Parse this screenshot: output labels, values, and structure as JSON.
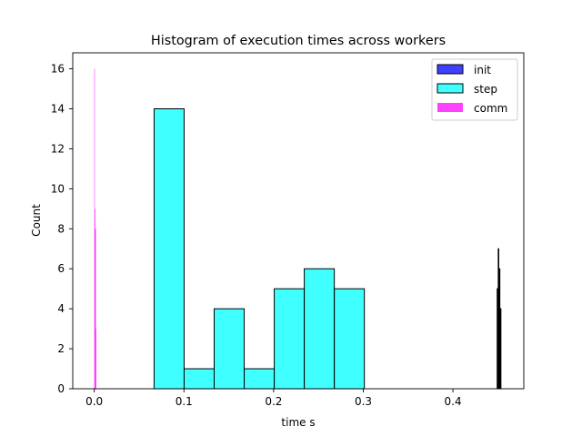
{
  "chart_data": {
    "type": "bar",
    "title": "Histogram of execution times across workers",
    "xlabel": "time s",
    "ylabel": "Count",
    "xlim": [
      -0.024,
      0.479
    ],
    "ylim": [
      0,
      16.8
    ],
    "xticks": [
      0.0,
      0.1,
      0.2,
      0.3,
      0.4
    ],
    "xtick_labels": [
      "0.0",
      "0.1",
      "0.2",
      "0.3",
      "0.4"
    ],
    "yticks": [
      0,
      2,
      4,
      6,
      8,
      10,
      12,
      14,
      16
    ],
    "ytick_labels": [
      "0",
      "2",
      "4",
      "6",
      "8",
      "10",
      "12",
      "14",
      "16"
    ],
    "legend_position": "upper right",
    "grid": false,
    "series": [
      {
        "name": "init",
        "color": "#0000ff",
        "edge": "#000000",
        "bins": [
          {
            "x0": 0.4493,
            "x1": 0.4499,
            "count": 5
          },
          {
            "x0": 0.4499,
            "x1": 0.4505,
            "count": 5
          },
          {
            "x0": 0.4505,
            "x1": 0.4511,
            "count": 7
          },
          {
            "x0": 0.4511,
            "x1": 0.4517,
            "count": 5
          },
          {
            "x0": 0.4517,
            "x1": 0.4523,
            "count": 6
          },
          {
            "x0": 0.4523,
            "x1": 0.4529,
            "count": 4
          },
          {
            "x0": 0.4529,
            "x1": 0.4535,
            "count": 4
          }
        ]
      },
      {
        "name": "step",
        "color": "#00ffff",
        "edge": "#000000",
        "bins": [
          {
            "x0": 0.0667,
            "x1": 0.1002,
            "count": 14
          },
          {
            "x0": 0.1002,
            "x1": 0.1337,
            "count": 1
          },
          {
            "x0": 0.1337,
            "x1": 0.1672,
            "count": 4
          },
          {
            "x0": 0.1672,
            "x1": 0.2007,
            "count": 1
          },
          {
            "x0": 0.2007,
            "x1": 0.2342,
            "count": 5
          },
          {
            "x0": 0.2342,
            "x1": 0.2677,
            "count": 6
          },
          {
            "x0": 0.2677,
            "x1": 0.3012,
            "count": 5
          }
        ]
      },
      {
        "name": "comm",
        "color": "#ff00ff",
        "edge": "none",
        "bins": [
          {
            "x0": 0.0,
            "x1": 0.0004,
            "count": 16
          },
          {
            "x0": 0.0004,
            "x1": 0.0008,
            "count": 8
          },
          {
            "x0": 0.0008,
            "x1": 0.0012,
            "count": 9
          },
          {
            "x0": 0.0012,
            "x1": 0.0016,
            "count": 8
          },
          {
            "x0": 0.0016,
            "x1": 0.002,
            "count": 3
          }
        ]
      }
    ]
  }
}
